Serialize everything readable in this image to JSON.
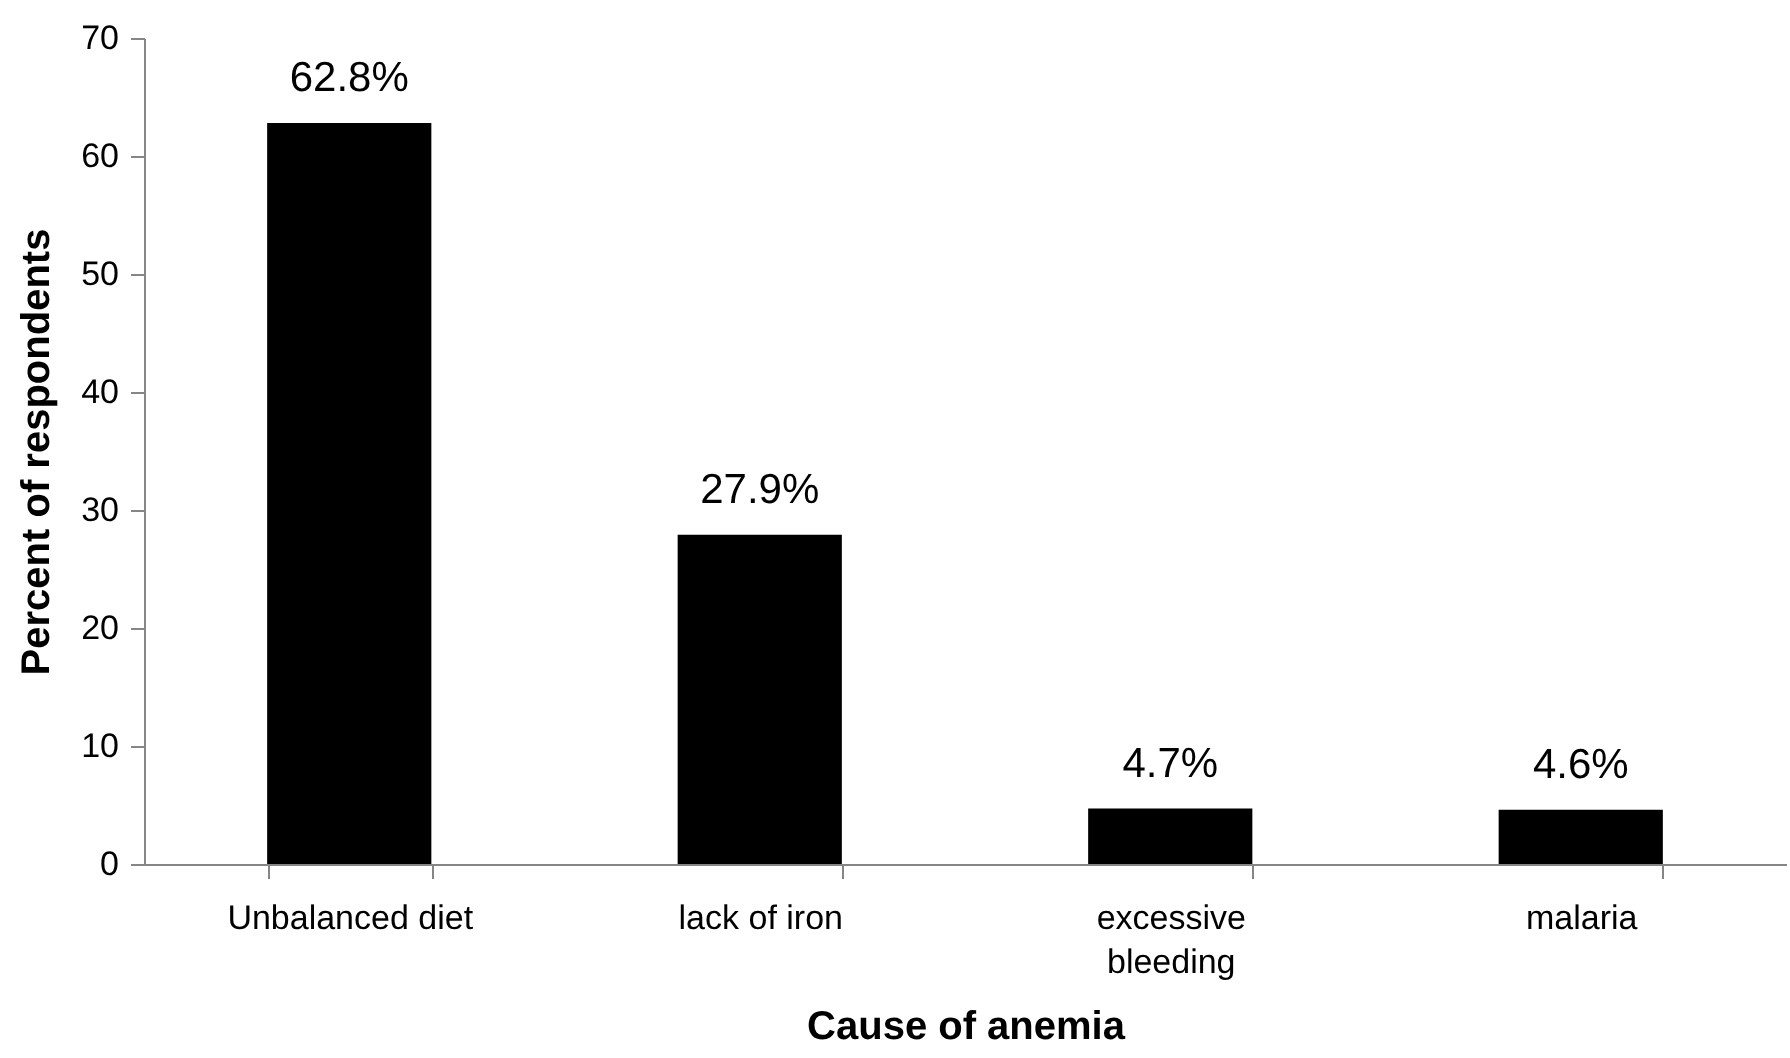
{
  "chart_data": {
    "type": "bar",
    "xlabel": "Cause of anemia",
    "ylabel": "Percent of respondents",
    "categories": [
      "Unbalanced diet",
      "lack of iron",
      "excessive bleeding",
      "malaria"
    ],
    "values": [
      62.8,
      27.9,
      4.7,
      4.6
    ],
    "color": "#000000",
    "value_labels": [
      "62.8%",
      "27.9%",
      "4.7%",
      "4.6%"
    ],
    "ylim": [
      0,
      70
    ],
    "yticks": [
      0,
      10,
      20,
      30,
      40,
      50,
      60,
      70
    ]
  }
}
